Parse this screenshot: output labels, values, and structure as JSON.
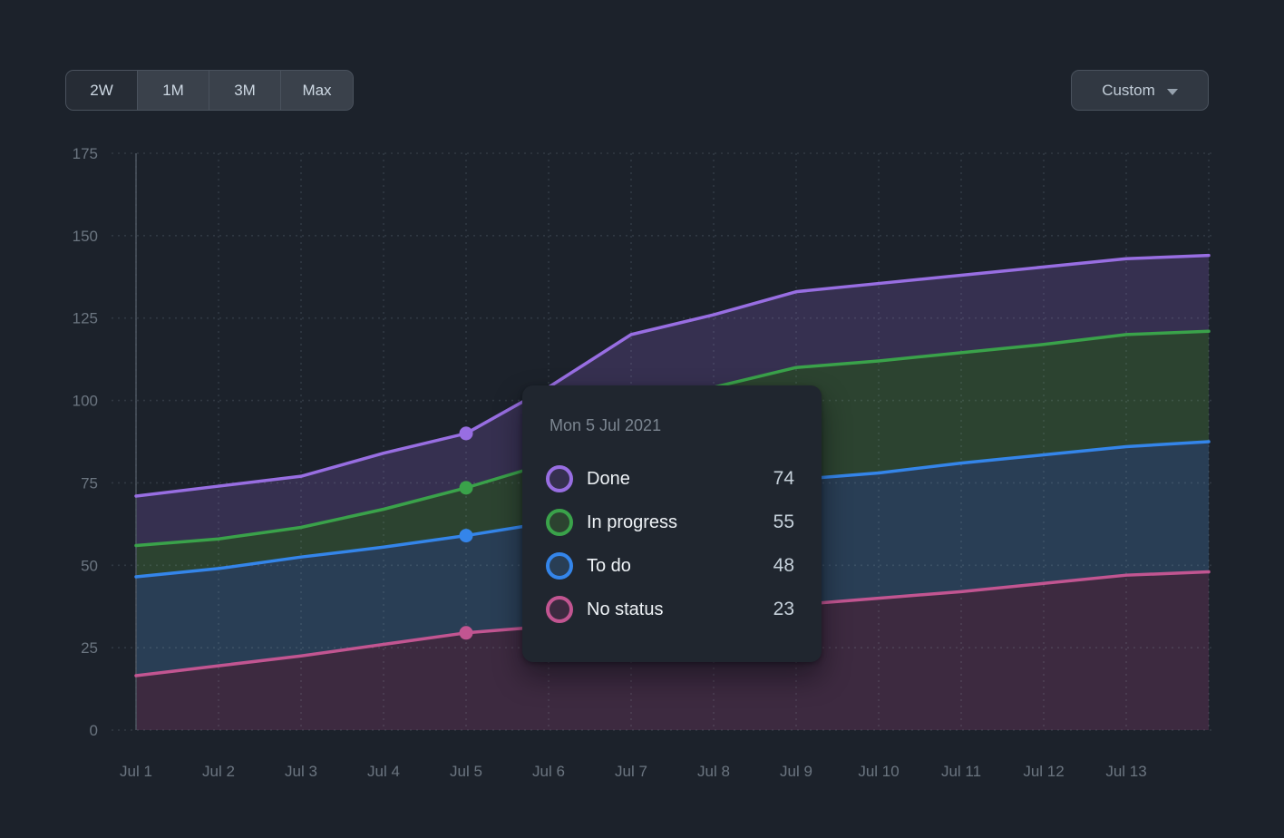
{
  "range_selector": {
    "options": [
      {
        "label": "2W",
        "selected": true
      },
      {
        "label": "1M",
        "selected": false
      },
      {
        "label": "3M",
        "selected": false
      },
      {
        "label": "Max",
        "selected": false
      }
    ]
  },
  "custom_dropdown": {
    "label": "Custom",
    "icon": "chevron-down"
  },
  "chart_data": {
    "type": "area",
    "description": "Burn-up style banded area chart: each line is a cumulative boundary with the band below it filled",
    "x_labels": [
      "Jul 1",
      "Jul 2",
      "Jul 3",
      "Jul 4",
      "Jul 5",
      "Jul 6",
      "Jul 7",
      "Jul 8",
      "Jul 9",
      "Jul 10",
      "Jul 11",
      "Jul 12",
      "Jul 13"
    ],
    "x_points": 14,
    "yticks": [
      0,
      25,
      50,
      75,
      100,
      125,
      150,
      175
    ],
    "ylim": [
      0,
      175
    ],
    "grid": "dashed horizontal and vertical gridlines",
    "legend_position": "tooltip-only",
    "highlight_index": 4,
    "series": [
      {
        "name": "Done",
        "line_color": "#986ee2",
        "fill_color": "#363050",
        "values": [
          71,
          74,
          77,
          84,
          90,
          104,
          120,
          126,
          133,
          135.5,
          138,
          140.5,
          143,
          144
        ]
      },
      {
        "name": "In progress",
        "line_color": "#3aa24a",
        "fill_color": "#2c4330",
        "values": [
          56,
          58,
          61.5,
          67,
          73.5,
          81,
          93,
          104,
          110,
          112,
          114.5,
          117,
          120,
          121
        ]
      },
      {
        "name": "To do",
        "line_color": "#3485ea",
        "fill_color": "#293e55",
        "values": [
          46.5,
          49,
          52.5,
          55.5,
          59,
          63,
          67.5,
          72,
          76,
          78,
          81,
          83.5,
          86,
          87.5
        ]
      },
      {
        "name": "No status",
        "line_color": "#c25591",
        "fill_color": "#3d2a40",
        "values": [
          16.5,
          19.5,
          22.5,
          26,
          29.5,
          31.5,
          33.5,
          36,
          38,
          40,
          42,
          44.5,
          47,
          48
        ]
      }
    ]
  },
  "tooltip": {
    "title": "Mon 5 Jul 2021",
    "rows": [
      {
        "label": "Done",
        "value": "74"
      },
      {
        "label": "In progress",
        "value": "55"
      },
      {
        "label": "To do",
        "value": "48"
      },
      {
        "label": "No status",
        "value": "23"
      }
    ]
  },
  "colors": {
    "background": "#1c222b",
    "axis_line": "#4c5560",
    "tick_text": "#6b7580",
    "button_text": "#cdd8e3",
    "tooltip_background": "#20262f"
  }
}
